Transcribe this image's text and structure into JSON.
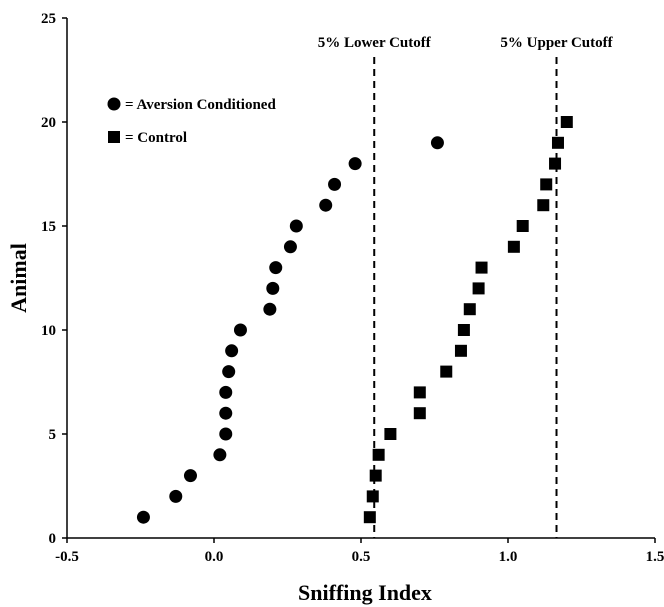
{
  "chart_data": {
    "type": "scatter",
    "title": "",
    "xlabel": "Sniffing Index",
    "ylabel": "Animal",
    "xlim": [
      -0.5,
      1.5
    ],
    "ylim": [
      0,
      25
    ],
    "x_ticks": [
      "-0.5",
      "0.0",
      "0.5",
      "1.0",
      "1.5"
    ],
    "y_ticks": [
      "0",
      "5",
      "10",
      "15",
      "20",
      "25"
    ],
    "grid": false,
    "legend_position": "top-left",
    "series": [
      {
        "name": "= Aversion Conditioned",
        "marker": "circle",
        "color": "#000000",
        "points": [
          {
            "x": -0.24,
            "y": 1
          },
          {
            "x": -0.13,
            "y": 2
          },
          {
            "x": -0.08,
            "y": 3
          },
          {
            "x": 0.02,
            "y": 4
          },
          {
            "x": 0.04,
            "y": 5
          },
          {
            "x": 0.04,
            "y": 6
          },
          {
            "x": 0.04,
            "y": 7
          },
          {
            "x": 0.05,
            "y": 8
          },
          {
            "x": 0.06,
            "y": 9
          },
          {
            "x": 0.09,
            "y": 10
          },
          {
            "x": 0.19,
            "y": 11
          },
          {
            "x": 0.2,
            "y": 12
          },
          {
            "x": 0.21,
            "y": 13
          },
          {
            "x": 0.26,
            "y": 14
          },
          {
            "x": 0.28,
            "y": 15
          },
          {
            "x": 0.38,
            "y": 16
          },
          {
            "x": 0.41,
            "y": 17
          },
          {
            "x": 0.48,
            "y": 18
          },
          {
            "x": 0.76,
            "y": 19
          }
        ]
      },
      {
        "name": "= Control",
        "marker": "square",
        "color": "#000000",
        "points": [
          {
            "x": 0.53,
            "y": 1
          },
          {
            "x": 0.54,
            "y": 2
          },
          {
            "x": 0.55,
            "y": 3
          },
          {
            "x": 0.56,
            "y": 4
          },
          {
            "x": 0.6,
            "y": 5
          },
          {
            "x": 0.7,
            "y": 6
          },
          {
            "x": 0.7,
            "y": 7
          },
          {
            "x": 0.79,
            "y": 8
          },
          {
            "x": 0.84,
            "y": 9
          },
          {
            "x": 0.85,
            "y": 10
          },
          {
            "x": 0.87,
            "y": 11
          },
          {
            "x": 0.9,
            "y": 12
          },
          {
            "x": 0.91,
            "y": 13
          },
          {
            "x": 1.02,
            "y": 14
          },
          {
            "x": 1.05,
            "y": 15
          },
          {
            "x": 1.12,
            "y": 16
          },
          {
            "x": 1.13,
            "y": 17
          },
          {
            "x": 1.16,
            "y": 18
          },
          {
            "x": 1.17,
            "y": 19
          },
          {
            "x": 1.2,
            "y": 20
          }
        ]
      }
    ],
    "annotations": [
      {
        "label": "5% Lower Cutoff",
        "x": 0.545,
        "style": "dashed-vertical-line"
      },
      {
        "label": "5% Upper Cutoff",
        "x": 1.165,
        "style": "dashed-vertical-line"
      }
    ]
  }
}
